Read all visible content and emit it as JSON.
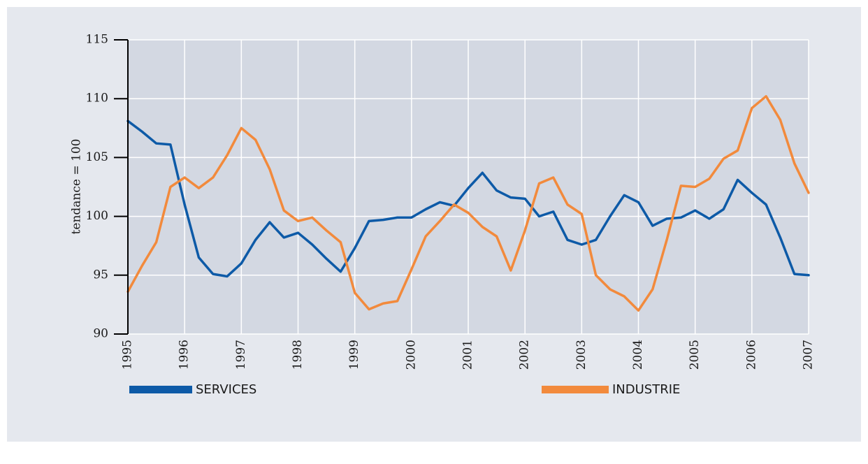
{
  "chart_data": {
    "type": "line",
    "ylabel": "tendance = 100",
    "x": [
      1995,
      1995.25,
      1995.5,
      1995.75,
      1996,
      1996.25,
      1996.5,
      1996.75,
      1997,
      1997.25,
      1997.5,
      1997.75,
      1998,
      1998.25,
      1998.5,
      1998.75,
      1999,
      1999.25,
      1999.5,
      1999.75,
      2000,
      2000.25,
      2000.5,
      2000.75,
      2001,
      2001.25,
      2001.5,
      2001.75,
      2002,
      2002.25,
      2002.5,
      2002.75,
      2003,
      2003.25,
      2003.5,
      2003.75,
      2004,
      2004.25,
      2004.5,
      2004.75,
      2005,
      2005.25,
      2005.5,
      2005.75,
      2006,
      2006.25,
      2006.5,
      2006.75,
      2007
    ],
    "series": [
      {
        "name": "SERVICES",
        "color": "#0d5aa7",
        "values": [
          108.1,
          107.2,
          106.2,
          106.1,
          101,
          96.5,
          95.1,
          94.9,
          96.0,
          98.0,
          99.5,
          98.2,
          98.6,
          97.6,
          96.4,
          95.3,
          97.3,
          99.6,
          99.7,
          99.9,
          99.9,
          100.6,
          101.2,
          100.9,
          102.4,
          103.7,
          102.2,
          101.6,
          101.5,
          100.0,
          100.4,
          98.0,
          97.6,
          98.0,
          100.0,
          101.8,
          101.2,
          99.2,
          99.8,
          99.9,
          100.5,
          99.8,
          100.6,
          103.1,
          102.0,
          101.0,
          98.2,
          95.1,
          95.0
        ]
      },
      {
        "name": "INDUSTRIE",
        "color": "#f28a3c",
        "values": [
          93.6,
          95.8,
          97.8,
          102.5,
          103.3,
          102.4,
          103.3,
          105.2,
          107.5,
          106.5,
          104.0,
          100.5,
          99.6,
          99.9,
          98.8,
          97.8,
          93.5,
          92.1,
          92.6,
          92.8,
          95.5,
          98.3,
          99.6,
          101.0,
          100.3,
          99.1,
          98.3,
          95.4,
          98.8,
          102.8,
          103.3,
          101.0,
          100.2,
          95.0,
          93.8,
          93.2,
          92.0,
          93.8,
          98.0,
          102.6,
          102.5,
          103.2,
          104.9,
          105.6,
          109.2,
          110.2,
          108.2,
          104.5,
          102.0
        ]
      }
    ],
    "xlim": [
      1995,
      2007
    ],
    "xticks": [
      1995,
      1996,
      1997,
      1998,
      1999,
      2000,
      2001,
      2002,
      2003,
      2004,
      2005,
      2006,
      2007
    ],
    "ylim": [
      90,
      115
    ],
    "yticks": [
      90,
      95,
      100,
      105,
      110,
      115
    ],
    "grid": true
  }
}
